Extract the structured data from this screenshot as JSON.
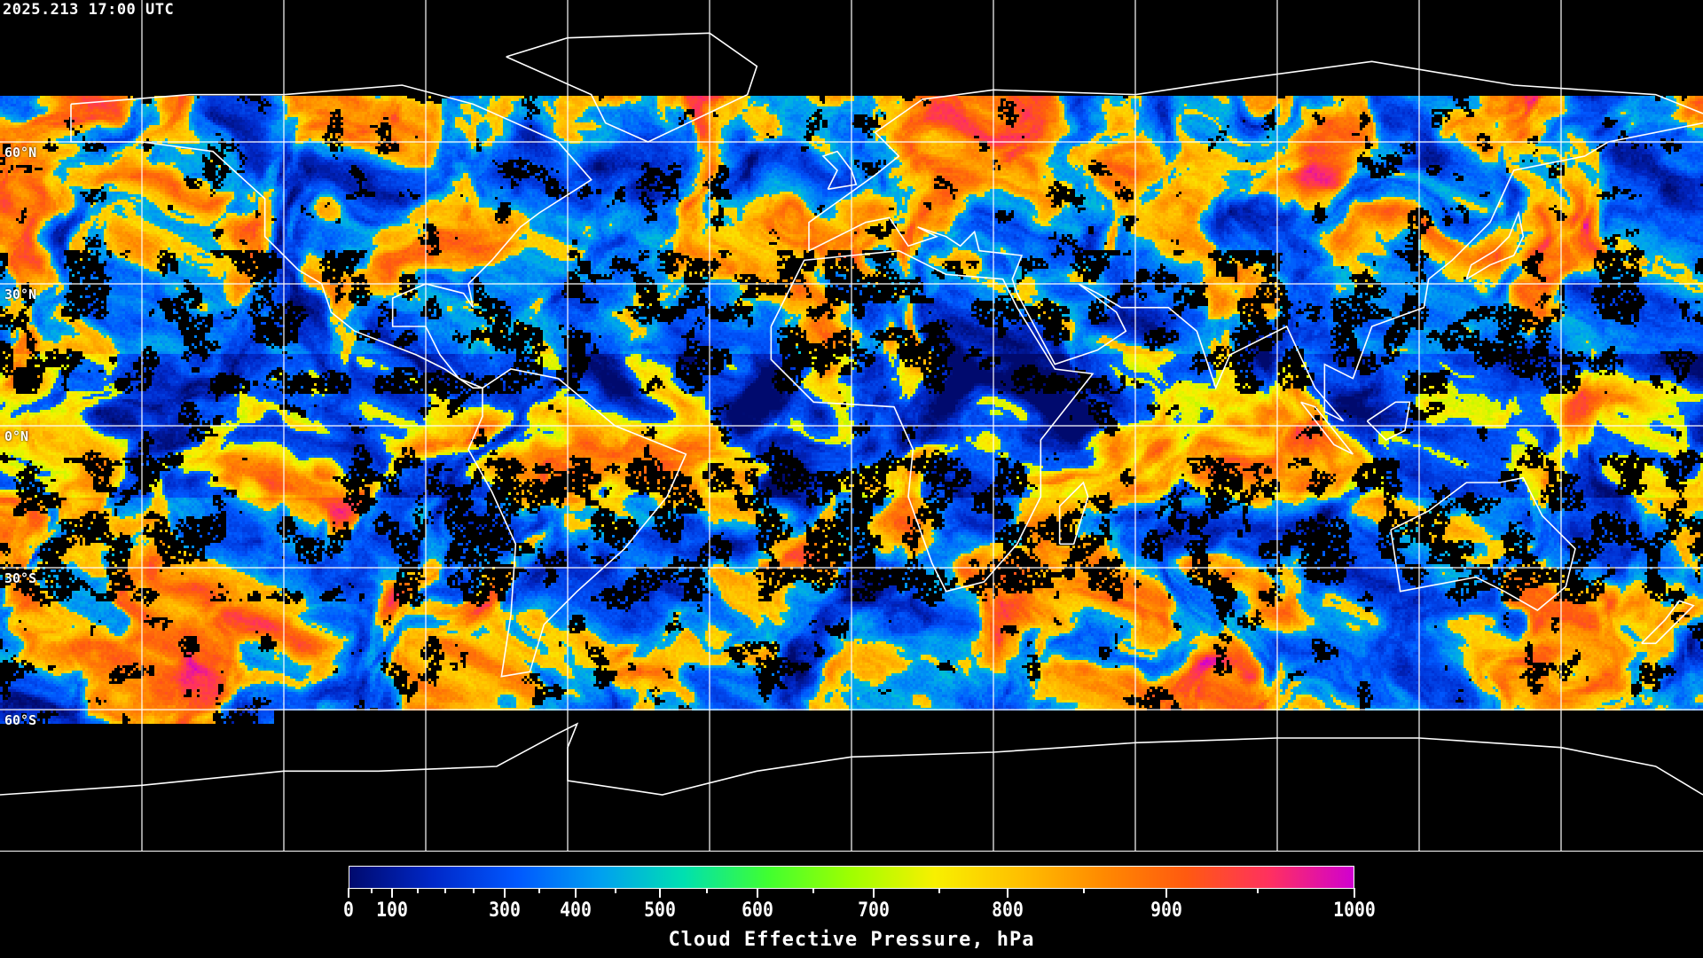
{
  "header": {
    "timestamp": "2025.213 17:00 UTC"
  },
  "map": {
    "projection": "equirectangular",
    "lon_range": [
      -180,
      180
    ],
    "lat_range": [
      -90,
      90
    ],
    "grid_spacing_deg": 30,
    "grid": true,
    "coastline_color": "#ffffff",
    "background_color": "#000000",
    "lat_labels": [
      "60°N",
      "30°N",
      "0°N",
      "30°S",
      "60°S"
    ]
  },
  "colorbar": {
    "label": "Cloud Effective Pressure, hPa",
    "range": [
      0,
      1000
    ],
    "tick_labels": [
      "0",
      "100",
      "300",
      "400",
      "500",
      "600",
      "700",
      "800",
      "900",
      "1000"
    ],
    "minor_ticks": [
      50,
      150,
      200,
      250,
      350,
      450,
      550,
      650,
      750,
      850,
      950
    ],
    "colors": [
      "#000a6e",
      "#0028c8",
      "#0058ff",
      "#00a0f0",
      "#00e0b0",
      "#40ff30",
      "#a0ff00",
      "#f8f000",
      "#ffc000",
      "#ff8a00",
      "#ff5a10",
      "#ff3060",
      "#d000d0"
    ]
  }
}
